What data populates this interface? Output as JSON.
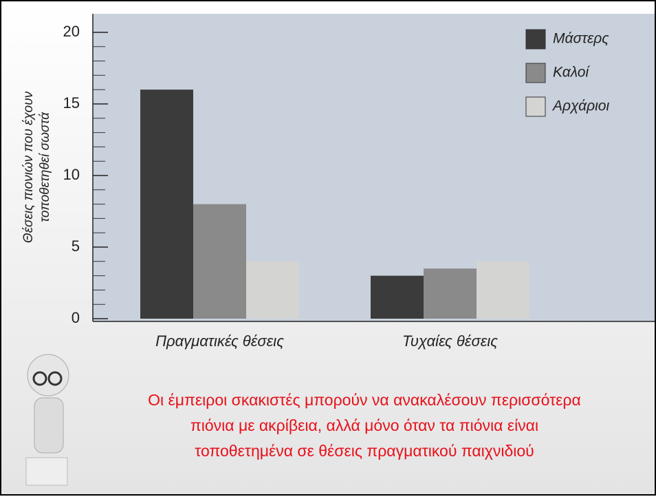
{
  "chart_data": {
    "type": "bar",
    "ylabel": [
      "Θέσεις πιονιών που έχουν",
      "τοποθετηθεί σωστά"
    ],
    "categories": [
      "Πραγματικές θέσεις",
      "Τυχαίες θέσεις"
    ],
    "series": [
      {
        "name": "Μάστερς",
        "color": "#3b3b3b",
        "values": [
          16,
          3
        ]
      },
      {
        "name": "Καλοί",
        "color": "#8a8a8a",
        "values": [
          8,
          3.5
        ]
      },
      {
        "name": "Αρχάριοι",
        "color": "#d4d4d2",
        "values": [
          4,
          4
        ]
      }
    ],
    "ylim": [
      0,
      20
    ],
    "yticks": [
      0,
      5,
      10,
      15,
      20
    ],
    "legend": "upper right",
    "annotations": [
      "Οι έμπειροι σκακιστές μπορούν να ανακαλέσουν περισσότερα",
      "πιόνια με ακρίβεια, αλλά μόνο όταν τα πιόνια είναι",
      "τοποθετημένα σε θέσεις πραγματικού παιχνιδιού"
    ]
  }
}
